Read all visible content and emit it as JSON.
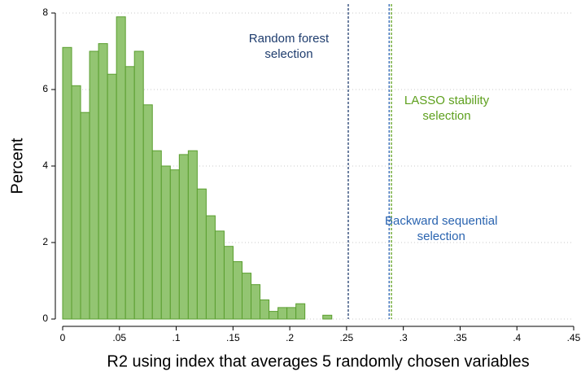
{
  "chart_data": {
    "type": "histogram",
    "x_label": "R2 using index that averages 5 randomly chosen variables",
    "y_label": "Percent",
    "bins": [
      0,
      0.0079,
      0.0158,
      0.0237,
      0.0316,
      0.0395,
      0.0474,
      0.0553,
      0.0632,
      0.0711,
      0.079,
      0.0869,
      0.0948,
      0.1027,
      0.1106,
      0.1185,
      0.1264,
      0.1343,
      0.1422,
      0.1501,
      0.158,
      0.1659,
      0.1738,
      0.1817,
      0.1896,
      0.1975,
      0.2054,
      0.2133,
      0.2212,
      0.2291,
      0.237
    ],
    "values": [
      7.1,
      6.1,
      5.4,
      7.0,
      7.2,
      6.4,
      7.9,
      6.6,
      7.0,
      5.6,
      4.4,
      4.0,
      3.9,
      4.3,
      4.4,
      3.4,
      2.7,
      2.3,
      1.9,
      1.5,
      1.2,
      0.9,
      0.5,
      0.2,
      0.3,
      0.3,
      0.4,
      0,
      0,
      0.1
    ],
    "color": "#93c572",
    "edge_color": "#5a9e2f",
    "xlim": [
      0,
      0.45
    ],
    "xticks": [
      0,
      {
        "value": 0.05,
        "label": ".05"
      },
      {
        "value": 0.1,
        "label": ".1"
      },
      {
        "value": 0.15,
        "label": ".15"
      },
      {
        "value": 0.2,
        "label": ".2"
      },
      {
        "value": 0.25,
        "label": ".25"
      },
      {
        "value": 0.3,
        "label": ".3"
      },
      {
        "value": 0.35,
        "label": ".35"
      },
      {
        "value": 0.4,
        "label": ".4"
      },
      {
        "value": 0.45,
        "label": ".45"
      }
    ],
    "ylim": [
      0,
      8
    ],
    "yticks": [
      0,
      2,
      4,
      6,
      8
    ],
    "grid": true,
    "vlines": [
      {
        "value": 0.2515,
        "color": "#1f3d6e",
        "label": [
          "Random forest",
          "selection"
        ]
      },
      {
        "value": 0.2895,
        "color": "#5ea01e",
        "label": [
          "LASSO stability",
          "selection"
        ]
      },
      {
        "value": 0.2875,
        "color": "#2a64b0",
        "label": [
          "Backward sequential",
          "selection"
        ]
      }
    ]
  }
}
